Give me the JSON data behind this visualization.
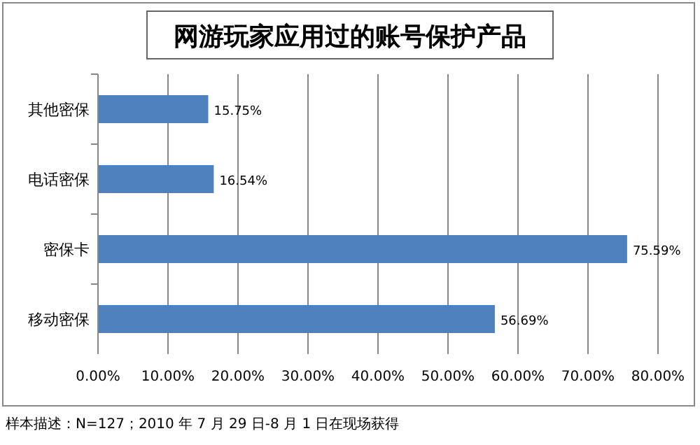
{
  "chart_data": {
    "type": "bar",
    "orientation": "horizontal",
    "title": "网游玩家应用过的账号保护产品",
    "categories": [
      "其他密保",
      "电话密保",
      "密保卡",
      "移动密保"
    ],
    "values": [
      15.75,
      16.54,
      75.59,
      56.69
    ],
    "value_labels": [
      "15.75%",
      "16.54%",
      "75.59%",
      "56.69%"
    ],
    "color": "#4f81bd",
    "xlim": [
      0,
      80
    ],
    "xticks": [
      {
        "value": 0,
        "label": "0.00%"
      },
      {
        "value": 10,
        "label": "10.00%"
      },
      {
        "value": 20,
        "label": "20.00%"
      },
      {
        "value": 30,
        "label": "30.00%"
      },
      {
        "value": 40,
        "label": "40.00%"
      },
      {
        "value": 50,
        "label": "50.00%"
      },
      {
        "value": 60,
        "label": "60.00%"
      },
      {
        "value": 70,
        "label": "70.00%"
      },
      {
        "value": 80,
        "label": "80.00%"
      }
    ],
    "grid": "x",
    "annotations": [
      "样本描述：N=127；2010 年 7 月 29 日-8 月 1 日在现场获得"
    ]
  }
}
